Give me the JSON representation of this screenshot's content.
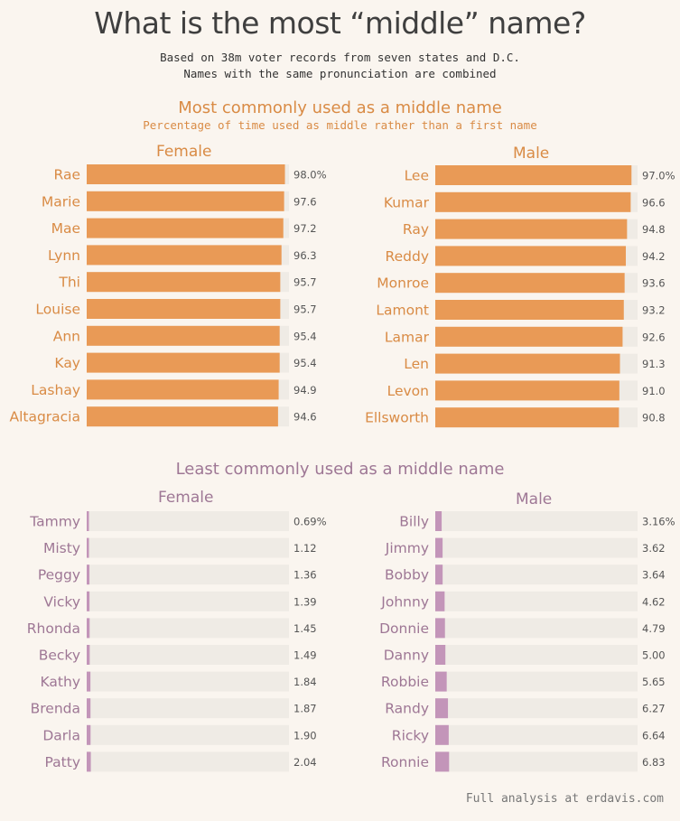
{
  "title": "What is the most “middle” name?",
  "subtitle_1": "Based on 38m voter records from seven states and D.C.",
  "subtitle_2": "Names with the same pronunciation are combined",
  "footer": "Full analysis at erdavis.com",
  "colors": {
    "most": "#e99a56",
    "least": "#c395b9",
    "track": "#efebe5",
    "most_text": "#d98b45",
    "least_text": "#9e7795",
    "value_text": "#555555"
  },
  "sections": {
    "most": {
      "title": "Most commonly used as a middle name",
      "subtitle": "Percentage of time used as middle rather than a first name",
      "female_label": "Female",
      "male_label": "Male"
    },
    "least": {
      "title": "Least commonly used as a middle name",
      "female_label": "Female",
      "male_label": "Male"
    }
  },
  "chart_data": [
    {
      "type": "bar",
      "title": "Most commonly used as a middle name — Female",
      "unit": "%",
      "xlim": [
        0,
        100
      ],
      "categories": [
        "Rae",
        "Marie",
        "Mae",
        "Lynn",
        "Thi",
        "Louise",
        "Ann",
        "Kay",
        "Lashay",
        "Altagracia"
      ],
      "values": [
        98.0,
        97.6,
        97.2,
        96.3,
        95.7,
        95.7,
        95.4,
        95.4,
        94.9,
        94.6
      ],
      "labels": [
        "98.0%",
        "97.6",
        "97.2",
        "96.3",
        "95.7",
        "95.7",
        "95.4",
        "95.4",
        "94.9",
        "94.6"
      ]
    },
    {
      "type": "bar",
      "title": "Most commonly used as a middle name — Male",
      "unit": "%",
      "xlim": [
        0,
        100
      ],
      "categories": [
        "Lee",
        "Kumar",
        "Ray",
        "Reddy",
        "Monroe",
        "Lamont",
        "Lamar",
        "Len",
        "Levon",
        "Ellsworth"
      ],
      "values": [
        97.0,
        96.6,
        94.8,
        94.2,
        93.6,
        93.2,
        92.6,
        91.3,
        91.0,
        90.8
      ],
      "labels": [
        "97.0%",
        "96.6",
        "94.8",
        "94.2",
        "93.6",
        "93.2",
        "92.6",
        "91.3",
        "91.0",
        "90.8"
      ]
    },
    {
      "type": "bar",
      "title": "Least commonly used as a middle name — Female",
      "unit": "%",
      "xlim": [
        0,
        100
      ],
      "categories": [
        "Tammy",
        "Misty",
        "Peggy",
        "Vicky",
        "Rhonda",
        "Becky",
        "Kathy",
        "Brenda",
        "Darla",
        "Patty"
      ],
      "values": [
        0.69,
        1.12,
        1.36,
        1.39,
        1.45,
        1.49,
        1.84,
        1.87,
        1.9,
        2.04
      ],
      "labels": [
        "0.69%",
        "1.12",
        "1.36",
        "1.39",
        "1.45",
        "1.49",
        "1.84",
        "1.87",
        "1.90",
        "2.04"
      ]
    },
    {
      "type": "bar",
      "title": "Least commonly used as a middle name — Male",
      "unit": "%",
      "xlim": [
        0,
        100
      ],
      "categories": [
        "Billy",
        "Jimmy",
        "Bobby",
        "Johnny",
        "Donnie",
        "Danny",
        "Robbie",
        "Randy",
        "Ricky",
        "Ronnie"
      ],
      "values": [
        3.16,
        3.62,
        3.64,
        4.62,
        4.79,
        5.0,
        5.65,
        6.27,
        6.64,
        6.83
      ],
      "labels": [
        "3.16%",
        "3.62",
        "3.64",
        "4.62",
        "4.79",
        "5.00",
        "5.65",
        "6.27",
        "6.64",
        "6.83"
      ]
    }
  ]
}
